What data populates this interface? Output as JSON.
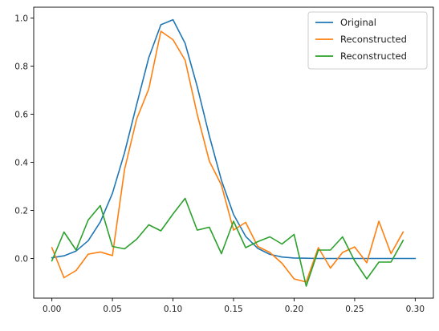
{
  "chart_data": {
    "type": "line",
    "title": "",
    "xlabel": "",
    "ylabel": "",
    "xlim": [
      -0.015,
      0.315
    ],
    "ylim": [
      -0.165,
      1.045
    ],
    "xticks": [
      0.0,
      0.05,
      0.1,
      0.15,
      0.2,
      0.25,
      0.3
    ],
    "xtick_labels": [
      "0.00",
      "0.05",
      "0.10",
      "0.15",
      "0.20",
      "0.25",
      "0.30"
    ],
    "yticks": [
      0.0,
      0.2,
      0.4,
      0.6,
      0.8,
      1.0
    ],
    "ytick_labels": [
      "0.0",
      "0.2",
      "0.4",
      "0.6",
      "0.8",
      "1.0"
    ],
    "grid": false,
    "legend_position": "top-right",
    "series": [
      {
        "name": "Original",
        "color": "#1f77b4",
        "x": [
          0.0,
          0.01,
          0.02,
          0.03,
          0.04,
          0.05,
          0.06,
          0.07,
          0.08,
          0.09,
          0.1,
          0.11,
          0.12,
          0.13,
          0.14,
          0.15,
          0.16,
          0.17,
          0.18,
          0.19,
          0.2,
          0.21,
          0.22,
          0.23,
          0.24,
          0.25,
          0.26,
          0.27,
          0.28,
          0.29,
          0.3
        ],
        "y": [
          0.003,
          0.011,
          0.031,
          0.074,
          0.152,
          0.271,
          0.44,
          0.64,
          0.835,
          0.972,
          0.993,
          0.895,
          0.715,
          0.51,
          0.325,
          0.183,
          0.092,
          0.042,
          0.017,
          0.006,
          0.002,
          0.001,
          0.0,
          0.0,
          0.0,
          0.0,
          0.0,
          0.0,
          0.0,
          0.0,
          0.0
        ]
      },
      {
        "name": "Reconstructed",
        "color": "#ff7f0e",
        "x": [
          0.0,
          0.01,
          0.02,
          0.03,
          0.04,
          0.05,
          0.06,
          0.07,
          0.08,
          0.09,
          0.1,
          0.11,
          0.12,
          0.13,
          0.14,
          0.15,
          0.16,
          0.17,
          0.18,
          0.19,
          0.2,
          0.21,
          0.22,
          0.23,
          0.24,
          0.25,
          0.26,
          0.27,
          0.28,
          0.29
        ],
        "y": [
          0.045,
          -0.08,
          -0.05,
          0.018,
          0.027,
          0.012,
          0.37,
          0.58,
          0.705,
          0.945,
          0.91,
          0.825,
          0.6,
          0.405,
          0.305,
          0.118,
          0.15,
          0.05,
          0.025,
          -0.02,
          -0.085,
          -0.098,
          0.045,
          -0.04,
          0.025,
          0.048,
          -0.018,
          0.155,
          0.02,
          0.11
        ]
      },
      {
        "name": "Reconstructed",
        "color": "#2ca02c",
        "x": [
          0.0,
          0.01,
          0.02,
          0.03,
          0.04,
          0.05,
          0.06,
          0.07,
          0.08,
          0.09,
          0.1,
          0.11,
          0.12,
          0.13,
          0.14,
          0.15,
          0.16,
          0.17,
          0.18,
          0.19,
          0.2,
          0.21,
          0.22,
          0.23,
          0.24,
          0.25,
          0.26,
          0.27,
          0.28,
          0.29
        ],
        "y": [
          -0.01,
          0.11,
          0.035,
          0.16,
          0.22,
          0.05,
          0.04,
          0.08,
          0.14,
          0.115,
          0.185,
          0.25,
          0.118,
          0.13,
          0.02,
          0.155,
          0.045,
          0.07,
          0.09,
          0.06,
          0.1,
          -0.115,
          0.035,
          0.035,
          0.09,
          -0.01,
          -0.085,
          -0.015,
          -0.015,
          0.075
        ]
      }
    ]
  }
}
